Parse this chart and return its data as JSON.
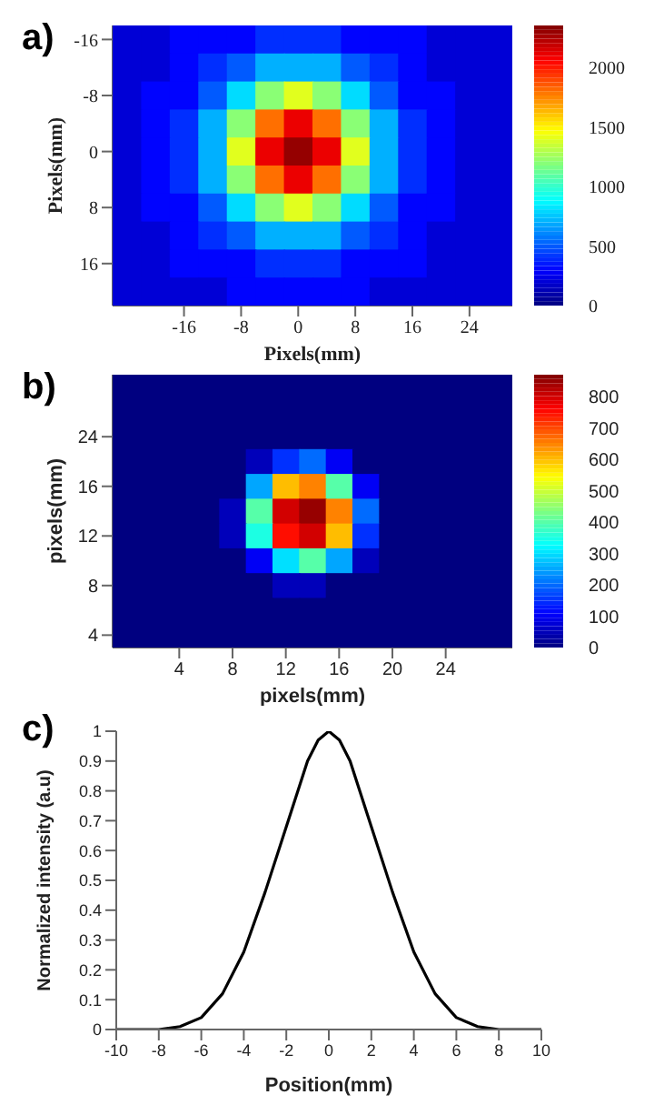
{
  "chart_data": [
    {
      "type": "heatmap",
      "title": "a)",
      "xlabel": "Pixels(mm)",
      "ylabel": "Pixels(mm)",
      "categories": [
        null,
        null,
        "-16",
        null,
        "-8",
        null,
        "0",
        null,
        "8",
        null,
        "16",
        null,
        "24",
        null
      ],
      "y_categories": [
        "-16",
        null,
        "-8",
        null,
        "0",
        null,
        "8",
        null,
        "16",
        null
      ],
      "cells": [
        [
          200,
          200,
          300,
          300,
          300,
          400,
          400,
          400,
          300,
          300,
          300,
          200,
          200,
          200
        ],
        [
          200,
          200,
          300,
          400,
          500,
          700,
          700,
          700,
          500,
          400,
          300,
          200,
          200,
          200
        ],
        [
          200,
          300,
          300,
          500,
          800,
          1200,
          1400,
          1200,
          800,
          500,
          300,
          300,
          200,
          200
        ],
        [
          200,
          300,
          400,
          700,
          1200,
          1800,
          2100,
          1800,
          1200,
          700,
          400,
          300,
          200,
          200
        ],
        [
          200,
          300,
          400,
          700,
          1400,
          2100,
          2300,
          2100,
          1400,
          700,
          400,
          300,
          200,
          200
        ],
        [
          200,
          300,
          400,
          700,
          1200,
          1800,
          2100,
          1800,
          1200,
          700,
          400,
          300,
          200,
          200
        ],
        [
          200,
          300,
          300,
          500,
          800,
          1200,
          1400,
          1200,
          800,
          500,
          300,
          300,
          200,
          200
        ],
        [
          200,
          200,
          300,
          400,
          500,
          700,
          700,
          700,
          500,
          400,
          300,
          200,
          200,
          200
        ],
        [
          200,
          200,
          300,
          300,
          300,
          400,
          400,
          400,
          300,
          300,
          300,
          200,
          200,
          200
        ],
        [
          200,
          200,
          200,
          200,
          300,
          300,
          300,
          300,
          300,
          200,
          200,
          200,
          200,
          200
        ]
      ],
      "clim": [
        0,
        2350
      ],
      "cticks": [
        0,
        500,
        1000,
        1500,
        2000
      ]
    },
    {
      "type": "heatmap",
      "title": "b)",
      "xlabel": "pixels(mm)",
      "ylabel": "pixels(mm)",
      "categories": [
        null,
        null,
        "4",
        null,
        "8",
        null,
        "12",
        null,
        "16",
        null,
        "20",
        null,
        "24",
        null,
        null
      ],
      "y_categories": [
        null,
        null,
        "24",
        null,
        "16",
        null,
        "12",
        null,
        "8",
        null,
        "4"
      ],
      "cells": [
        [
          0,
          0,
          0,
          0,
          0,
          0,
          0,
          0,
          0,
          0,
          0,
          0,
          0,
          0,
          0
        ],
        [
          0,
          0,
          0,
          0,
          0,
          0,
          0,
          0,
          0,
          0,
          0,
          0,
          0,
          0,
          0
        ],
        [
          0,
          0,
          0,
          0,
          0,
          0,
          0,
          0,
          0,
          0,
          0,
          0,
          0,
          0,
          0
        ],
        [
          0,
          0,
          0,
          0,
          0,
          50,
          150,
          200,
          100,
          0,
          0,
          0,
          0,
          0,
          0
        ],
        [
          0,
          0,
          0,
          0,
          0,
          250,
          600,
          650,
          400,
          100,
          0,
          0,
          0,
          0,
          0
        ],
        [
          0,
          0,
          0,
          0,
          50,
          400,
          800,
          850,
          650,
          200,
          0,
          0,
          0,
          0,
          0
        ],
        [
          0,
          0,
          0,
          0,
          50,
          350,
          750,
          800,
          600,
          150,
          0,
          0,
          0,
          0,
          0
        ],
        [
          0,
          0,
          0,
          0,
          0,
          100,
          300,
          400,
          250,
          50,
          0,
          0,
          0,
          0,
          0
        ],
        [
          0,
          0,
          0,
          0,
          0,
          0,
          50,
          50,
          0,
          0,
          0,
          0,
          0,
          0,
          0
        ],
        [
          0,
          0,
          0,
          0,
          0,
          0,
          0,
          0,
          0,
          0,
          0,
          0,
          0,
          0,
          0
        ],
        [
          0,
          0,
          0,
          0,
          0,
          0,
          0,
          0,
          0,
          0,
          0,
          0,
          0,
          0,
          0
        ]
      ],
      "clim": [
        0,
        870
      ],
      "cticks": [
        0,
        100,
        200,
        300,
        400,
        500,
        600,
        700,
        800
      ]
    },
    {
      "type": "line",
      "title": "c)",
      "xlabel": "Position(mm)",
      "ylabel": "Normalized intensity (a.u)",
      "x": [
        -10,
        -8,
        -7,
        -6,
        -5,
        -4,
        -3,
        -2,
        -1,
        -0.5,
        0,
        0.5,
        1,
        2,
        3,
        4,
        5,
        6,
        7,
        8,
        10
      ],
      "series": [
        {
          "color": "#000000",
          "values": [
            0,
            0,
            0.01,
            0.04,
            0.12,
            0.26,
            0.46,
            0.68,
            0.9,
            0.97,
            1,
            0.97,
            0.9,
            0.68,
            0.46,
            0.26,
            0.12,
            0.04,
            0.01,
            0,
            0
          ]
        }
      ],
      "xlim": [
        -10,
        10
      ],
      "xticks": [
        -10,
        -8,
        -6,
        -4,
        -2,
        0,
        2,
        4,
        6,
        8,
        10
      ],
      "ylim": [
        0,
        1
      ],
      "yticks": [
        0,
        0.1,
        0.2,
        0.3,
        0.4,
        0.5,
        0.6,
        0.7,
        0.8,
        0.9,
        1
      ]
    }
  ]
}
